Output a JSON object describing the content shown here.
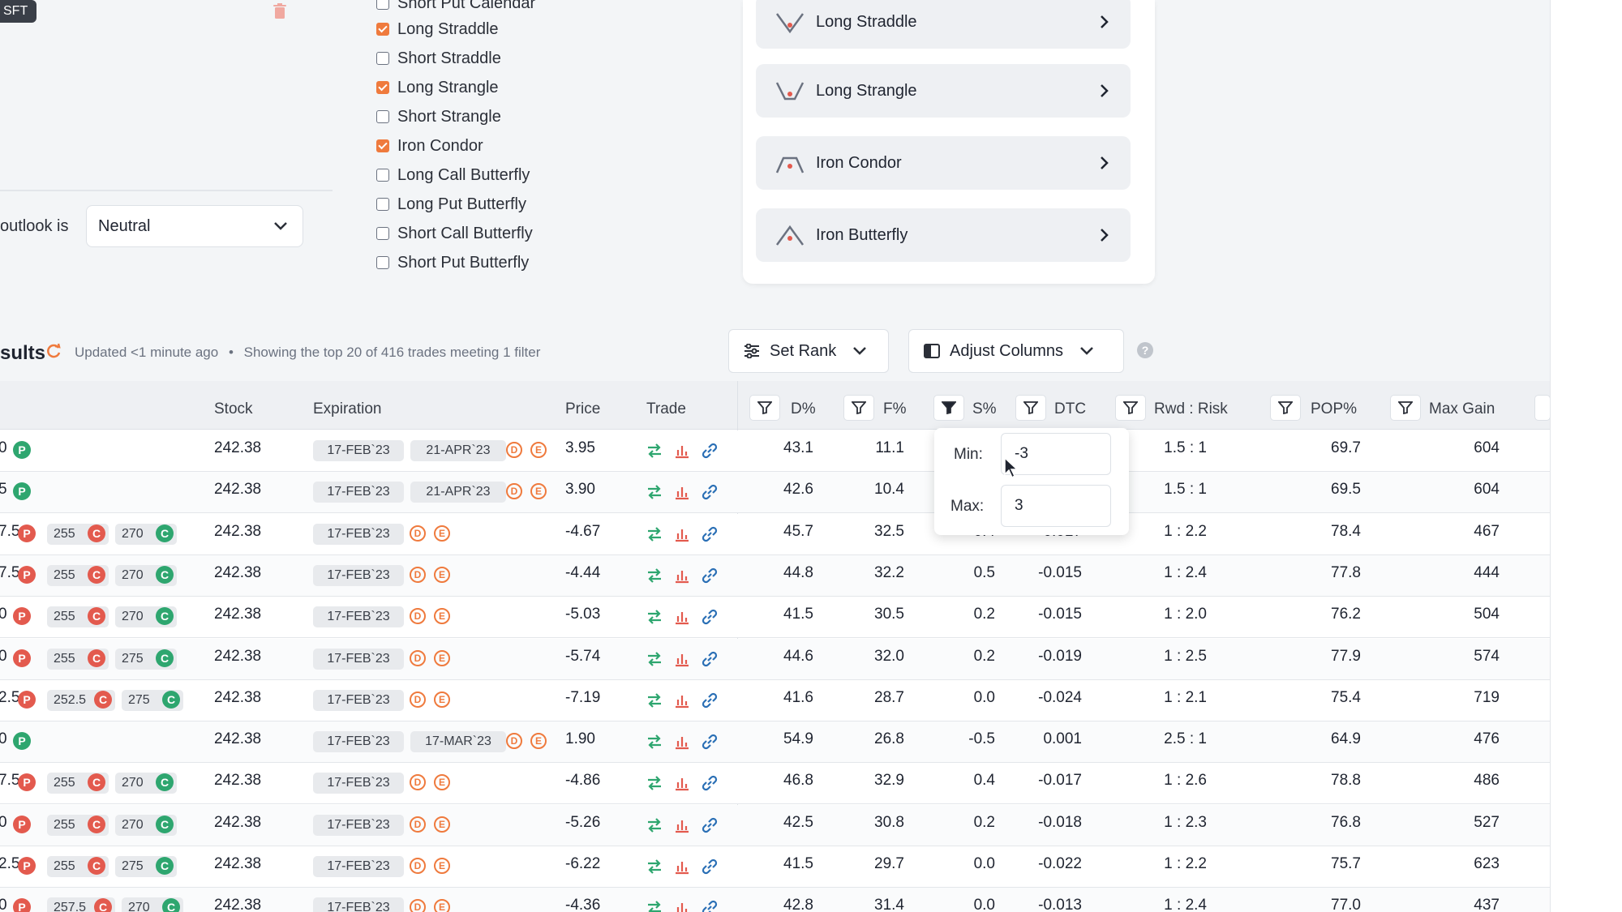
{
  "top_tag": "SFT",
  "outlook": {
    "label": "outlook is",
    "value": "Neutral"
  },
  "strategy_checklist": [
    {
      "label": "Short Put Calendar",
      "checked": false
    },
    {
      "label": "Long Straddle",
      "checked": true
    },
    {
      "label": "Short Straddle",
      "checked": false
    },
    {
      "label": "Long Strangle",
      "checked": true
    },
    {
      "label": "Short Strangle",
      "checked": false
    },
    {
      "label": "Iron Condor",
      "checked": true
    },
    {
      "label": "Long Call Butterfly",
      "checked": false
    },
    {
      "label": "Long Put Butterfly",
      "checked": false
    },
    {
      "label": "Short Call Butterfly",
      "checked": false
    },
    {
      "label": "Short Put Butterfly",
      "checked": false
    }
  ],
  "strategy_buttons": [
    {
      "label": "Long Straddle",
      "icon": "long-straddle-payoff-icon"
    },
    {
      "label": "Long Strangle",
      "icon": "long-strangle-payoff-icon"
    },
    {
      "label": "Iron Condor",
      "icon": "iron-condor-payoff-icon"
    },
    {
      "label": "Iron Butterfly",
      "icon": "iron-butterfly-payoff-icon"
    }
  ],
  "results": {
    "title": "sults",
    "updated": "Updated <1 minute ago",
    "separator": "•",
    "summary": "Showing the top 20 of 416 trades meeting 1 filter",
    "set_rank": "Set Rank",
    "adjust_columns": "Adjust Columns",
    "help": "?"
  },
  "columns": [
    "Stock",
    "Expiration",
    "Price",
    "Trade",
    "D%",
    "F%",
    "S%",
    "DTC",
    "Rwd : Risk",
    "POP%",
    "Max Gain"
  ],
  "filter_popup": {
    "min_label": "Min:",
    "min_value": "-3",
    "max_label": "Max:",
    "max_value": "3"
  },
  "rows": [
    {
      "legs": [
        {
          "t": "0",
          "b": "P",
          "c": "g"
        }
      ],
      "stock": "242.38",
      "exp": [
        "17-FEB`23",
        "21-APR`23"
      ],
      "price": "3.95",
      "d": "43.1",
      "f": "11.1",
      "s": "",
      "dtc": "",
      "rr": "1.5 : 1",
      "pop": "69.7",
      "max": "604"
    },
    {
      "legs": [
        {
          "t": "5",
          "b": "P",
          "c": "g"
        }
      ],
      "stock": "242.38",
      "exp": [
        "17-FEB`23",
        "21-APR`23"
      ],
      "price": "3.90",
      "d": "42.6",
      "f": "10.4",
      "s": "",
      "dtc": "",
      "rr": "1.5 : 1",
      "pop": "69.5",
      "max": "604"
    },
    {
      "legs": [
        {
          "t": "7.5",
          "b": "P",
          "c": "r"
        },
        {
          "t": "255",
          "b": "C",
          "c": "r"
        },
        {
          "t": "270",
          "b": "C",
          "c": "g"
        }
      ],
      "stock": "242.38",
      "exp": [
        "17-FEB`23"
      ],
      "price": "-4.67",
      "d": "45.7",
      "f": "32.5",
      "s": "0.4",
      "dtc": "-0.017",
      "rr": "1 : 2.2",
      "pop": "78.4",
      "max": "467"
    },
    {
      "legs": [
        {
          "t": "7.5",
          "b": "P",
          "c": "r"
        },
        {
          "t": "255",
          "b": "C",
          "c": "r"
        },
        {
          "t": "270",
          "b": "C",
          "c": "g"
        }
      ],
      "stock": "242.38",
      "exp": [
        "17-FEB`23"
      ],
      "price": "-4.44",
      "d": "44.8",
      "f": "32.2",
      "s": "0.5",
      "dtc": "-0.015",
      "rr": "1 : 2.4",
      "pop": "77.8",
      "max": "444"
    },
    {
      "legs": [
        {
          "t": "0",
          "b": "P",
          "c": "r"
        },
        {
          "t": "255",
          "b": "C",
          "c": "r"
        },
        {
          "t": "270",
          "b": "C",
          "c": "g"
        }
      ],
      "stock": "242.38",
      "exp": [
        "17-FEB`23"
      ],
      "price": "-5.03",
      "d": "41.5",
      "f": "30.5",
      "s": "0.2",
      "dtc": "-0.015",
      "rr": "1 : 2.0",
      "pop": "76.2",
      "max": "504"
    },
    {
      "legs": [
        {
          "t": "0",
          "b": "P",
          "c": "r"
        },
        {
          "t": "255",
          "b": "C",
          "c": "r"
        },
        {
          "t": "275",
          "b": "C",
          "c": "g"
        }
      ],
      "stock": "242.38",
      "exp": [
        "17-FEB`23"
      ],
      "price": "-5.74",
      "d": "44.6",
      "f": "32.0",
      "s": "0.2",
      "dtc": "-0.019",
      "rr": "1 : 2.5",
      "pop": "77.9",
      "max": "574"
    },
    {
      "legs": [
        {
          "t": "2.5",
          "b": "P",
          "c": "r"
        },
        {
          "t": "252.5",
          "b": "C",
          "c": "r"
        },
        {
          "t": "275",
          "b": "C",
          "c": "g"
        }
      ],
      "stock": "242.38",
      "exp": [
        "17-FEB`23"
      ],
      "price": "-7.19",
      "d": "41.6",
      "f": "28.7",
      "s": "0.0",
      "dtc": "-0.024",
      "rr": "1 : 2.1",
      "pop": "75.4",
      "max": "719"
    },
    {
      "legs": [
        {
          "t": "0",
          "b": "P",
          "c": "g"
        }
      ],
      "stock": "242.38",
      "exp": [
        "17-FEB`23",
        "17-MAR`23"
      ],
      "price": "1.90",
      "d": "54.9",
      "f": "26.8",
      "s": "-0.5",
      "dtc": "0.001",
      "rr": "2.5 : 1",
      "pop": "64.9",
      "max": "476"
    },
    {
      "legs": [
        {
          "t": "7.5",
          "b": "P",
          "c": "r"
        },
        {
          "t": "255",
          "b": "C",
          "c": "r"
        },
        {
          "t": "270",
          "b": "C",
          "c": "g"
        }
      ],
      "stock": "242.38",
      "exp": [
        "17-FEB`23"
      ],
      "price": "-4.86",
      "d": "46.8",
      "f": "32.9",
      "s": "0.4",
      "dtc": "-0.017",
      "rr": "1 : 2.6",
      "pop": "78.8",
      "max": "486"
    },
    {
      "legs": [
        {
          "t": "0",
          "b": "P",
          "c": "r"
        },
        {
          "t": "255",
          "b": "C",
          "c": "r"
        },
        {
          "t": "270",
          "b": "C",
          "c": "g"
        }
      ],
      "stock": "242.38",
      "exp": [
        "17-FEB`23"
      ],
      "price": "-5.26",
      "d": "42.5",
      "f": "30.8",
      "s": "0.2",
      "dtc": "-0.018",
      "rr": "1 : 2.3",
      "pop": "76.8",
      "max": "527"
    },
    {
      "legs": [
        {
          "t": "2.5",
          "b": "P",
          "c": "r"
        },
        {
          "t": "255",
          "b": "C",
          "c": "r"
        },
        {
          "t": "275",
          "b": "C",
          "c": "g"
        }
      ],
      "stock": "242.38",
      "exp": [
        "17-FEB`23"
      ],
      "price": "-6.22",
      "d": "41.5",
      "f": "29.7",
      "s": "0.0",
      "dtc": "-0.022",
      "rr": "1 : 2.2",
      "pop": "75.7",
      "max": "623"
    },
    {
      "legs": [
        {
          "t": "0",
          "b": "P",
          "c": "r"
        },
        {
          "t": "257.5",
          "b": "C",
          "c": "r"
        },
        {
          "t": "270",
          "b": "C",
          "c": "g"
        }
      ],
      "stock": "242.38",
      "exp": [
        "17-FEB`23"
      ],
      "price": "-4.36",
      "d": "42.8",
      "f": "31.4",
      "s": "0.0",
      "dtc": "-0.013",
      "rr": "1 : 2.4",
      "pop": "77.0",
      "max": "437"
    }
  ],
  "colors": {
    "accent": "#ef7a3d",
    "put_red": "#e35a4e",
    "call_green": "#2ea66f"
  }
}
